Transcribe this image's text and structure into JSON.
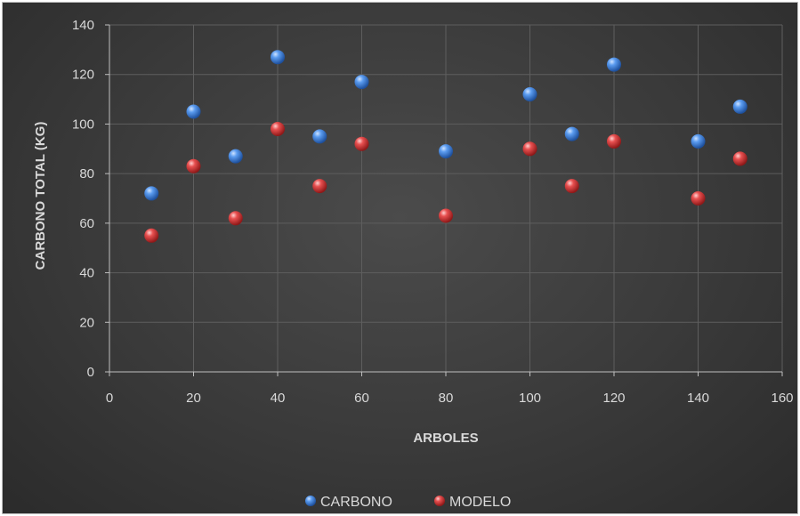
{
  "chart_data": {
    "type": "scatter",
    "xlabel": "ARBOLES",
    "ylabel": "CARBONO TOTAL (KG)",
    "xlim": [
      0,
      160
    ],
    "ylim": [
      0,
      140
    ],
    "xticks": [
      0,
      20,
      40,
      60,
      80,
      100,
      120,
      140,
      160
    ],
    "yticks": [
      0,
      20,
      40,
      60,
      80,
      100,
      120,
      140
    ],
    "grid": true,
    "legend_position": "bottom",
    "series": [
      {
        "name": "CARBONO",
        "color": "#3f7fd6",
        "points": [
          {
            "x": 10,
            "y": 72
          },
          {
            "x": 20,
            "y": 105
          },
          {
            "x": 30,
            "y": 87
          },
          {
            "x": 40,
            "y": 127
          },
          {
            "x": 50,
            "y": 95
          },
          {
            "x": 60,
            "y": 117
          },
          {
            "x": 80,
            "y": 89
          },
          {
            "x": 100,
            "y": 112
          },
          {
            "x": 110,
            "y": 96
          },
          {
            "x": 120,
            "y": 124
          },
          {
            "x": 140,
            "y": 93
          },
          {
            "x": 150,
            "y": 107
          }
        ]
      },
      {
        "name": "MODELO",
        "color": "#d93b3b",
        "points": [
          {
            "x": 10,
            "y": 55
          },
          {
            "x": 20,
            "y": 83
          },
          {
            "x": 30,
            "y": 62
          },
          {
            "x": 40,
            "y": 98
          },
          {
            "x": 50,
            "y": 75
          },
          {
            "x": 60,
            "y": 92
          },
          {
            "x": 80,
            "y": 63
          },
          {
            "x": 100,
            "y": 90
          },
          {
            "x": 110,
            "y": 75
          },
          {
            "x": 120,
            "y": 93
          },
          {
            "x": 140,
            "y": 70
          },
          {
            "x": 150,
            "y": 86
          }
        ]
      }
    ]
  }
}
